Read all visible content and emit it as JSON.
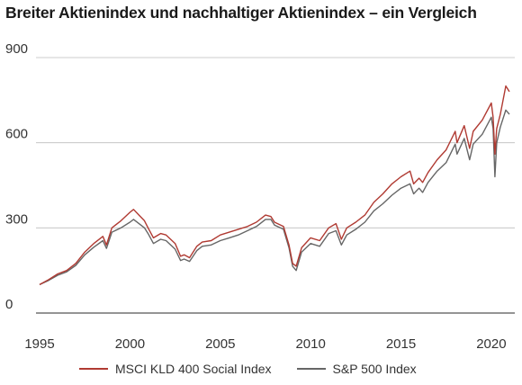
{
  "chart_data": {
    "type": "line",
    "title": "Breiter Aktienindex und nachhaltiger Aktienindex – ein Vergleich",
    "xlabel": "",
    "ylabel": "",
    "xlim": [
      1994.8,
      2021.3
    ],
    "ylim": [
      0,
      900
    ],
    "y_ticks": [
      0,
      300,
      600,
      900
    ],
    "x_ticks": [
      1995,
      2000,
      2005,
      2010,
      2015,
      2020
    ],
    "grid": "horizontal",
    "legend_position": "bottom",
    "series": [
      {
        "name": "MSCI KLD 400 Social Index",
        "color": "#b03a32",
        "x": [
          1995.0,
          1995.5,
          1996.0,
          1996.5,
          1997.0,
          1997.5,
          1998.0,
          1998.5,
          1998.7,
          1999.0,
          1999.5,
          2000.0,
          2000.2,
          2000.5,
          2000.8,
          2001.0,
          2001.3,
          2001.7,
          2002.0,
          2002.5,
          2002.8,
          2003.0,
          2003.3,
          2003.7,
          2004.0,
          2004.5,
          2005.0,
          2005.5,
          2006.0,
          2006.5,
          2007.0,
          2007.5,
          2007.8,
          2008.0,
          2008.5,
          2008.8,
          2009.0,
          2009.2,
          2009.5,
          2010.0,
          2010.5,
          2011.0,
          2011.4,
          2011.7,
          2012.0,
          2012.5,
          2013.0,
          2013.5,
          2014.0,
          2014.5,
          2015.0,
          2015.5,
          2015.7,
          2016.0,
          2016.2,
          2016.5,
          2017.0,
          2017.5,
          2018.0,
          2018.1,
          2018.5,
          2018.8,
          2019.0,
          2019.5,
          2020.0,
          2020.1,
          2020.2,
          2020.3,
          2020.5,
          2020.8,
          2021.0
        ],
        "values": [
          100,
          118,
          138,
          150,
          175,
          215,
          245,
          270,
          240,
          300,
          325,
          355,
          365,
          345,
          325,
          300,
          265,
          280,
          275,
          245,
          200,
          205,
          195,
          235,
          250,
          255,
          275,
          285,
          295,
          305,
          320,
          345,
          340,
          320,
          305,
          240,
          175,
          165,
          230,
          265,
          255,
          300,
          315,
          260,
          300,
          320,
          345,
          390,
          420,
          455,
          480,
          500,
          455,
          475,
          460,
          495,
          540,
          575,
          640,
          600,
          660,
          580,
          640,
          680,
          740,
          690,
          560,
          650,
          700,
          800,
          780
        ]
      },
      {
        "name": "S&P 500 Index",
        "color": "#666666",
        "x": [
          1995.0,
          1995.5,
          1996.0,
          1996.5,
          1997.0,
          1997.5,
          1998.0,
          1998.5,
          1998.7,
          1999.0,
          1999.5,
          2000.0,
          2000.2,
          2000.5,
          2000.8,
          2001.0,
          2001.3,
          2001.7,
          2002.0,
          2002.5,
          2002.8,
          2003.0,
          2003.3,
          2003.7,
          2004.0,
          2004.5,
          2005.0,
          2005.5,
          2006.0,
          2006.5,
          2007.0,
          2007.5,
          2007.8,
          2008.0,
          2008.5,
          2008.8,
          2009.0,
          2009.2,
          2009.5,
          2010.0,
          2010.5,
          2011.0,
          2011.4,
          2011.7,
          2012.0,
          2012.5,
          2013.0,
          2013.5,
          2014.0,
          2014.5,
          2015.0,
          2015.5,
          2015.7,
          2016.0,
          2016.2,
          2016.5,
          2017.0,
          2017.5,
          2018.0,
          2018.1,
          2018.5,
          2018.8,
          2019.0,
          2019.5,
          2020.0,
          2020.1,
          2020.2,
          2020.3,
          2020.5,
          2020.8,
          2021.0
        ],
        "values": [
          100,
          115,
          133,
          145,
          168,
          205,
          232,
          255,
          228,
          285,
          300,
          320,
          330,
          315,
          300,
          280,
          245,
          260,
          255,
          225,
          185,
          190,
          182,
          220,
          235,
          240,
          255,
          265,
          275,
          290,
          305,
          330,
          330,
          310,
          295,
          230,
          165,
          150,
          215,
          245,
          235,
          280,
          290,
          240,
          275,
          295,
          320,
          360,
          385,
          415,
          440,
          455,
          420,
          440,
          425,
          460,
          500,
          530,
          595,
          560,
          615,
          540,
          595,
          630,
          690,
          650,
          480,
          600,
          655,
          715,
          700
        ]
      }
    ]
  }
}
